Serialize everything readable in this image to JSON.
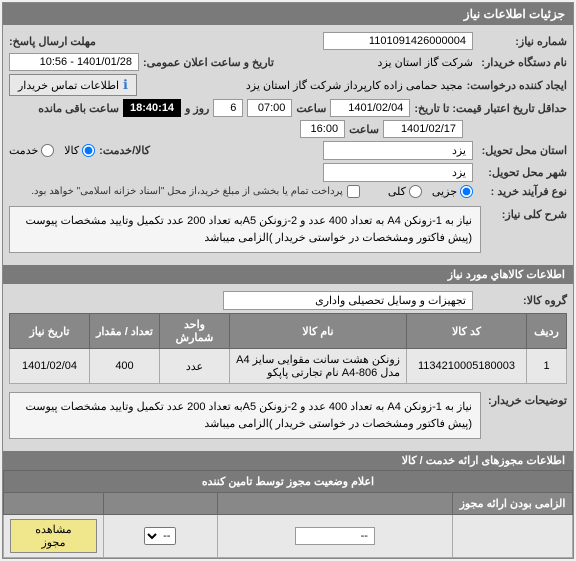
{
  "panel_title": "جزئیات اطلاعات نیاز",
  "form": {
    "need_no_label": "شماره نیاز:",
    "need_no": "1101091426000004",
    "send_dt_label": "مهلت ارسال پاسخ:",
    "buyer_org_label": "نام دستگاه خریدار:",
    "buyer_org": "شركت گاز استان يزد",
    "announce_dt_label": "تاریخ و ساعت اعلان عمومی:",
    "announce_dt": "1401/01/28 - 10:56",
    "requester_label": "ایجاد کننده درخواست:",
    "requester": "مجید حمامی زاده کارپرداز شرکت گاز استان یزد",
    "contact_btn": "اطلاعات تماس خریدار",
    "min_hist_label": "حداقل تاریخ اعتبار قیمت: تا تاریخ:",
    "date1": "1401/02/04",
    "time_label": "ساعت",
    "time1": "07:00",
    "day_label": "روز و",
    "day_val": "6",
    "remain_label": "ساعت باقی مانده",
    "remain_val": "18:40:14",
    "date2": "1401/02/17",
    "time2": "16:00",
    "loc1_label": "استان محل تحویل:",
    "loc_val": "یزد",
    "serv_label": "کالا/خدمت:",
    "serv_opt1": "کالا",
    "serv_opt2": "خدمت",
    "loc2_label": "شهر محل تحویل:",
    "buytype_label": "نوع فرآیند خرید :",
    "buytype_opt1": "جزیی",
    "buytype_opt2": "کلی",
    "pay_note": "پرداخت تمام یا بخشی از مبلغ خرید،از محل \"اسناد خزانه اسلامی\" خواهد بود.",
    "sharh_label": "شرح کلی نیاز:",
    "sharh_text": "نیاز به 1-زونکن A4 به تعداد 400 عدد  و 2-زونکن A5به تعداد 200 عدد تکمیل وتایید مشخصات پیوست (پیش فاکتور ومشخصات در خواستی خریدار )الزامی میباشد"
  },
  "goods": {
    "header": "اطلاعات كالاهاي مورد نياز",
    "group_label": "گروه کالا:",
    "group_val": "تجهیزات و وسایل تحصیلی واداری",
    "cols": {
      "row": "ردیف",
      "code": "کد کالا",
      "name": "نام کالا",
      "unit": "واحد شمارش",
      "qty": "تعداد / مقدار",
      "date": "تاریخ نیاز"
    },
    "rows": [
      {
        "row": "1",
        "code": "1134210005180003",
        "name": "زونکن هشت سانت مقوایی سایز A4 مدل 806-A4 نام تجارتی پاپکو",
        "unit": "عدد",
        "qty": "400",
        "date": "1401/02/04"
      }
    ],
    "buyer_notes_label": "توضیحات خریدار:",
    "buyer_notes": "نیاز به 1-زونکن A4 به تعداد 400 عدد  و 2-زونکن A5به تعداد 200 عدد تکمیل وتایید مشخصات پیوست (پیش فاکتور ومشخصات در خواستی خریدار )الزامی میباشد"
  },
  "permits": {
    "header": "اطلاعات مجوزهای ارائه خدمت / کالا",
    "sub": "اعلام وضعیت مجوز توسط تامین کننده",
    "cols": {
      "mandatory": "الزامی بودن ارائه مجوز",
      "c2": "",
      "c3": "",
      "view": ""
    },
    "select_val": "--",
    "view_btn": "مشاهده مجوز"
  }
}
